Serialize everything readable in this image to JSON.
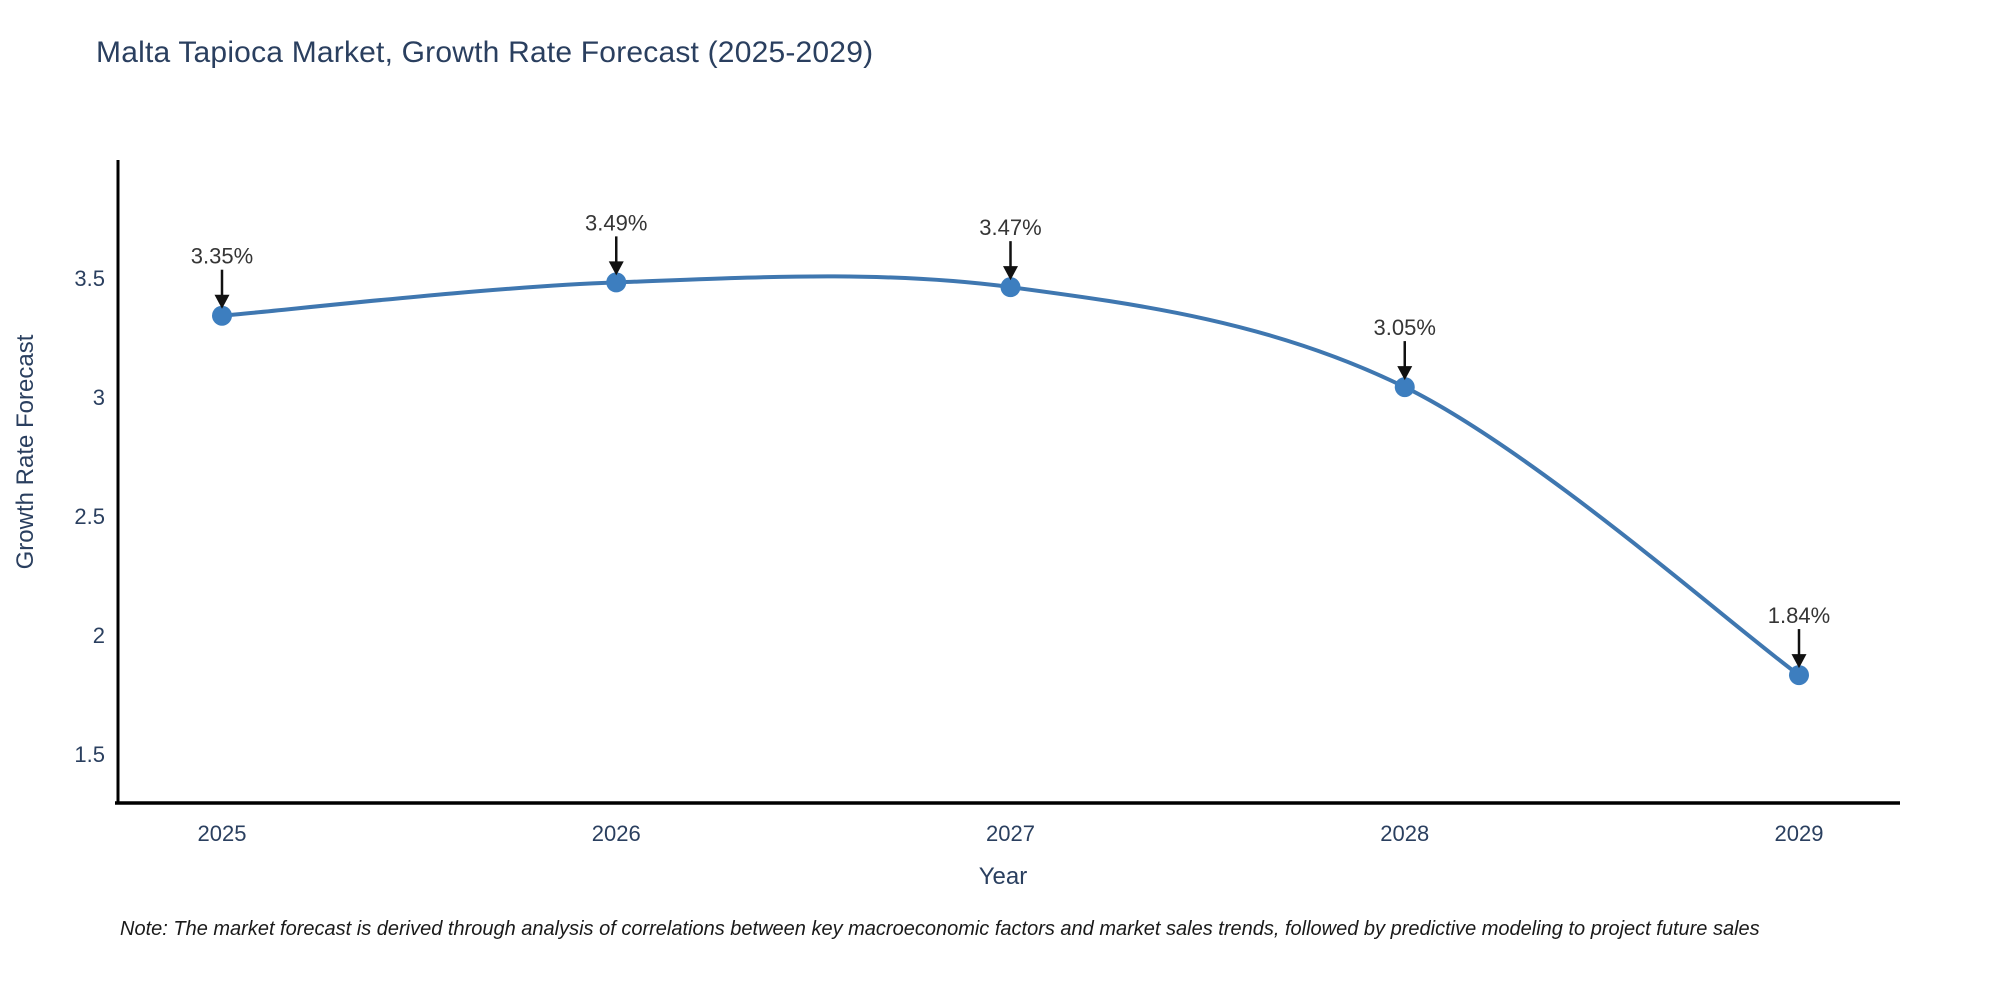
{
  "chart_data": {
    "type": "line",
    "title": "Malta Tapioca Market, Growth Rate Forecast (2025-2029)",
    "xlabel": "Year",
    "ylabel": "Growth Rate Forecast",
    "x": [
      2025,
      2026,
      2027,
      2028,
      2029
    ],
    "series": [
      {
        "name": "Growth Rate Forecast",
        "values": [
          3.35,
          3.49,
          3.47,
          3.05,
          1.84
        ]
      }
    ],
    "point_labels": [
      "3.35%",
      "3.49%",
      "3.47%",
      "3.05%",
      "1.84%"
    ],
    "x_tick_labels": [
      "2025",
      "2026",
      "2027",
      "2028",
      "2029"
    ],
    "y_tick_labels": [
      "1.5",
      "2",
      "2.5",
      "3",
      "3.5"
    ],
    "y_ticks": [
      1.5,
      2,
      2.5,
      3,
      3.5
    ],
    "ylim": [
      1.3,
      4.0
    ],
    "grid": false,
    "legend_position": "none",
    "line_shape": "spline",
    "colors": {
      "line": "#3f77b0",
      "marker": "#3d7ebf",
      "axis": "#000000",
      "tick_text": "#2a3f5f",
      "annotation_text": "#353535",
      "arrow": "#111111"
    }
  },
  "note": "Note: The market forecast is derived through analysis of correlations between key macroeconomic factors and market sales trends, followed by predictive modeling to project future sales"
}
